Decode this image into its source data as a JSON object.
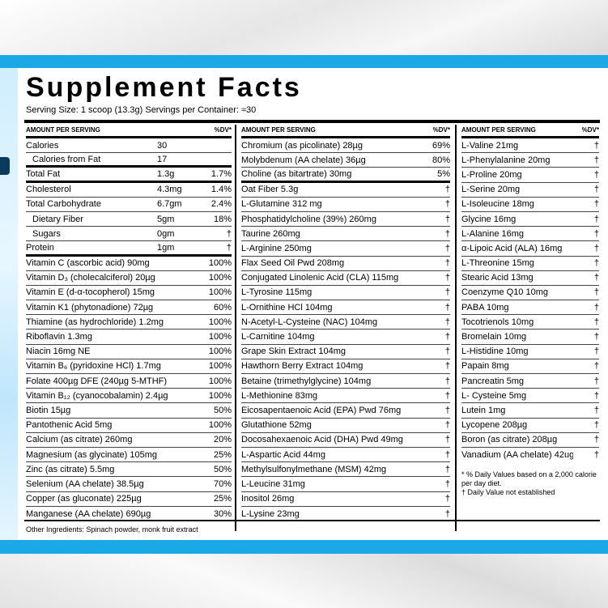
{
  "title": "Supplement Facts",
  "serving": "Serving Size: 1 scoop (13.3g)  Servings per Container: ≈30",
  "headers": {
    "amount": "AMOUNT PER SERVING",
    "dv": "%DV*"
  },
  "col1": [
    {
      "name": "Calories",
      "amount": "30",
      "dv": "",
      "style": "thin"
    },
    {
      "name": "Calories from Fat",
      "amount": "17",
      "dv": "",
      "style": "thick",
      "indent": true
    },
    {
      "name": "Total Fat",
      "amount": "1.3g",
      "dv": "1.7%",
      "style": "thick"
    },
    {
      "name": "Cholesterol",
      "amount": "4.3mg",
      "dv": "1.4%",
      "style": "thin"
    },
    {
      "name": "Total Carbohydrate",
      "amount": "6.7gm",
      "dv": "2.4%",
      "style": "thin"
    },
    {
      "name": "Dietary Fiber",
      "amount": "5gm",
      "dv": "18%",
      "style": "thin",
      "indent": true
    },
    {
      "name": "Sugars",
      "amount": "0gm",
      "dv": "†",
      "style": "thin",
      "indent": true
    },
    {
      "name": "Protein",
      "amount": "1gm",
      "dv": "†",
      "style": "thick"
    },
    {
      "name": "Vitamin C (ascorbic acid) 90mg",
      "amount": "",
      "dv": "100%",
      "style": "thin"
    },
    {
      "name": "Vitamin D₃ (cholecalciferol) 20µg",
      "amount": "",
      "dv": "100%",
      "style": "thin"
    },
    {
      "name": "Vitamin E (d-α-tocopherol) 15mg",
      "amount": "",
      "dv": "100%",
      "style": "thin"
    },
    {
      "name": "Vitamin K1 (phytonadione) 72µg",
      "amount": "",
      "dv": "60%",
      "style": "thin"
    },
    {
      "name": "Thiamine (as hydrochloride) 1.2mg",
      "amount": "",
      "dv": "100%",
      "style": "thin"
    },
    {
      "name": "Riboflavin 1.3mg",
      "amount": "",
      "dv": "100%",
      "style": "thin"
    },
    {
      "name": "Niacin 16mg NE",
      "amount": "",
      "dv": "100%",
      "style": "thin"
    },
    {
      "name": "Vitamin B₆ (pyridoxine HCl) 1.7mg",
      "amount": "",
      "dv": "100%",
      "style": "thin"
    },
    {
      "name": "Folate 400µg DFE (240µg 5-MTHF)",
      "amount": "",
      "dv": "100%",
      "style": "thin"
    },
    {
      "name": "Vitamin B₁₂ (cyanocobalamin) 2.4µg",
      "amount": "",
      "dv": "100%",
      "style": "thin"
    },
    {
      "name": "Biotin 15µg",
      "amount": "",
      "dv": "50%",
      "style": "thin"
    },
    {
      "name": "Pantothenic Acid 5mg",
      "amount": "",
      "dv": "100%",
      "style": "thin"
    },
    {
      "name": "Calcium (as citrate) 260mg",
      "amount": "",
      "dv": "20%",
      "style": "thin"
    },
    {
      "name": "Magnesium (as glycinate) 105mg",
      "amount": "",
      "dv": "25%",
      "style": "thin"
    },
    {
      "name": "Zinc (as citrate) 5.5mg",
      "amount": "",
      "dv": "50%",
      "style": "thin"
    },
    {
      "name": "Selenium (AA chelate) 38.5µg",
      "amount": "",
      "dv": "70%",
      "style": "thin"
    },
    {
      "name": "Copper (as gluconate) 225µg",
      "amount": "",
      "dv": "25%",
      "style": "thin"
    },
    {
      "name": "Manganese (AA chelate) 690µg",
      "amount": "",
      "dv": "30%",
      "style": "none"
    }
  ],
  "col2": [
    {
      "name": "Chromium (as picolinate) 28µg",
      "dv": "69%",
      "style": "thin"
    },
    {
      "name": "Molybdenum (AA chelate) 36µg",
      "dv": "80%",
      "style": "thin"
    },
    {
      "name": "Choline (as bitartrate) 30mg",
      "dv": "5%",
      "style": "thick"
    },
    {
      "name": "Oat Fiber 5.3g",
      "dv": "†",
      "style": "thin"
    },
    {
      "name": "L-Glutamine 312 mg",
      "dv": "†",
      "style": "thin"
    },
    {
      "name": "Phosphatidylcholine (39%) 260mg",
      "dv": "†",
      "style": "thin"
    },
    {
      "name": "Taurine 260mg",
      "dv": "†",
      "style": "thin"
    },
    {
      "name": "L-Arginine 250mg",
      "dv": "†",
      "style": "thin"
    },
    {
      "name": "Flax Seed Oil Pwd 208mg",
      "dv": "†",
      "style": "thin"
    },
    {
      "name": "Conjugated Linolenic Acid (CLA) 115mg",
      "dv": "†",
      "style": "thin"
    },
    {
      "name": "L-Tyrosine 115mg",
      "dv": "†",
      "style": "thin"
    },
    {
      "name": "L-Ornithine HCl 104mg",
      "dv": "†",
      "style": "thin"
    },
    {
      "name": "N-Acetyl-L-Cysteine (NAC) 104mg",
      "dv": "†",
      "style": "thin"
    },
    {
      "name": "L-Carnitine 104mg",
      "dv": "†",
      "style": "thin"
    },
    {
      "name": "Grape Skin Extract 104mg",
      "dv": "†",
      "style": "thin"
    },
    {
      "name": "Hawthorn Berry Extract 104mg",
      "dv": "†",
      "style": "thin"
    },
    {
      "name": "Betaine (trimethylglycine) 104mg",
      "dv": "†",
      "style": "thin"
    },
    {
      "name": "L-Methionine 83mg",
      "dv": "†",
      "style": "thin"
    },
    {
      "name": "Eicosapentaenoic Acid (EPA) Pwd 76mg",
      "dv": "†",
      "style": "thin"
    },
    {
      "name": "Glutathione 52mg",
      "dv": "†",
      "style": "thin"
    },
    {
      "name": "Docosahexaenoic Acid (DHA) Pwd 49mg",
      "dv": "†",
      "style": "thin"
    },
    {
      "name": "L-Aspartic Acid 44mg",
      "dv": "†",
      "style": "thin"
    },
    {
      "name": "Methylsulfonylmethane (MSM) 42mg",
      "dv": "†",
      "style": "thin"
    },
    {
      "name": "L-Leucine 31mg",
      "dv": "†",
      "style": "thin"
    },
    {
      "name": "Inositol 26mg",
      "dv": "†",
      "style": "thin"
    },
    {
      "name": "L-Lysine 23mg",
      "dv": "†",
      "style": "none"
    }
  ],
  "col3": [
    {
      "name": "L-Valine 21mg",
      "dv": "†"
    },
    {
      "name": "L-Phenylalanine 20mg",
      "dv": "†"
    },
    {
      "name": "L-Proline 20mg",
      "dv": "†"
    },
    {
      "name": "L-Serine 20mg",
      "dv": "†"
    },
    {
      "name": "L-Isoleucine 18mg",
      "dv": "†"
    },
    {
      "name": "Glycine 16mg",
      "dv": "†"
    },
    {
      "name": "L-Alanine 16mg",
      "dv": "†"
    },
    {
      "name": "α-Lipoic Acid (ALA) 16mg",
      "dv": "†"
    },
    {
      "name": "L-Threonine 15mg",
      "dv": "†"
    },
    {
      "name": "Stearic Acid 13mg",
      "dv": "†"
    },
    {
      "name": "Coenzyme Q10 10mg",
      "dv": "†"
    },
    {
      "name": "PABA 10mg",
      "dv": "†"
    },
    {
      "name": "Tocotrienols 10mg",
      "dv": "†"
    },
    {
      "name": "Bromelain 10mg",
      "dv": "†"
    },
    {
      "name": "L-Histidine 10mg",
      "dv": "†"
    },
    {
      "name": "Papain 8mg",
      "dv": "†"
    },
    {
      "name": "Pancreatin 5mg",
      "dv": "†"
    },
    {
      "name": "L- Cysteine 5mg",
      "dv": "†"
    },
    {
      "name": "Lutein 1mg",
      "dv": "†"
    },
    {
      "name": "Lycopene 208µg",
      "dv": "†"
    },
    {
      "name": "Boron (as citrate) 208µg",
      "dv": "†"
    },
    {
      "name": "Vanadium (AA chelate) 42ug",
      "dv": "†"
    }
  ],
  "footnotes": {
    "dv_note": "* % Daily Values based on a 2,000 calorie per day diet.",
    "dagger_note": "† Daily Value not established"
  },
  "other_ingredients": "Other Ingredients: Spinach powder, monk fruit extract",
  "colors": {
    "accent": "#1aa8e6"
  }
}
